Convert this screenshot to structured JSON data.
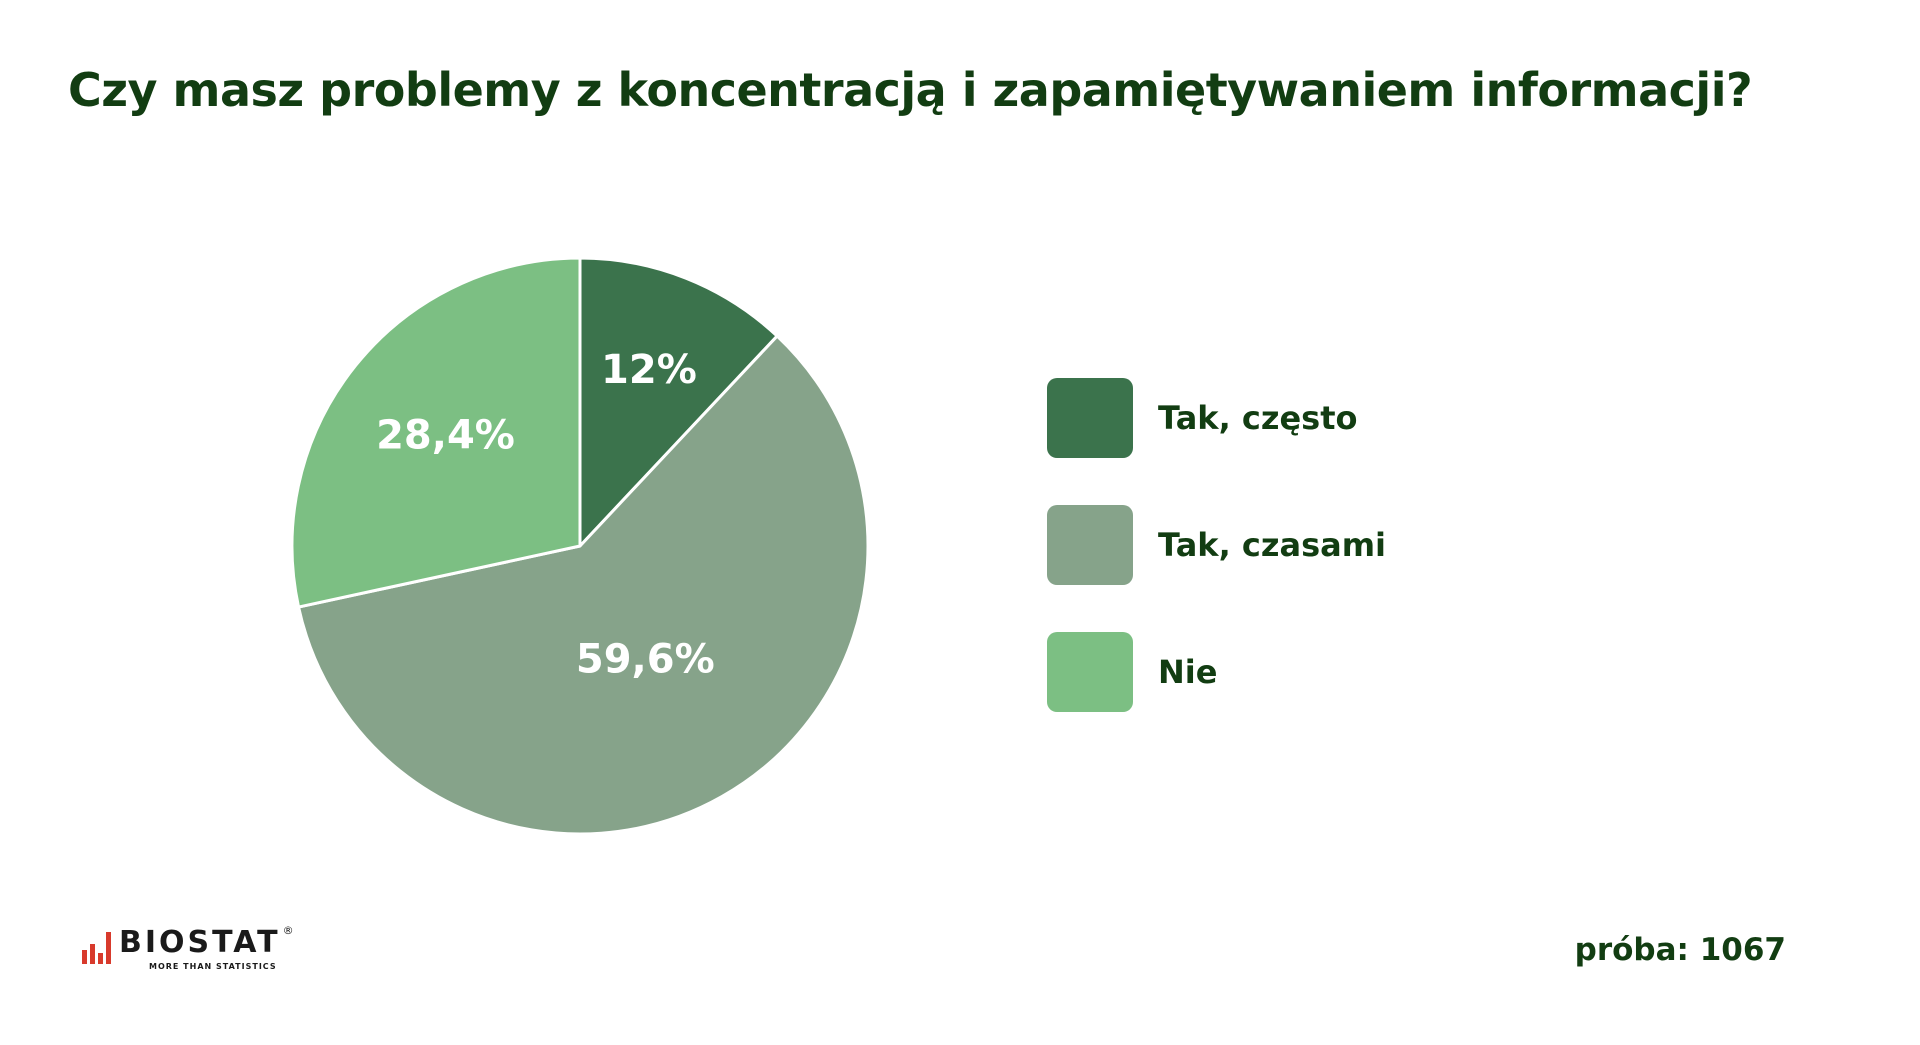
{
  "title": "Czy masz problemy z koncentracją i zapamiętywaniem informacji?",
  "chart_data": {
    "type": "pie",
    "title": "Czy masz problemy z koncentracją i zapamiętywaniem informacji?",
    "categories": [
      "Tak, często",
      "Tak, czasami",
      "Nie"
    ],
    "values": [
      12,
      59.6,
      28.4
    ],
    "value_labels": [
      "12%",
      "59,6%",
      "28,4%"
    ],
    "colors": [
      "#3b734c",
      "#86a38a",
      "#7cbf83"
    ],
    "start_angle_deg": 0,
    "direction": "clockwise",
    "legend_position": "right"
  },
  "legend": [
    {
      "label": "Tak, często",
      "color": "#3b734c"
    },
    {
      "label": "Tak, czasami",
      "color": "#86a38a"
    },
    {
      "label": "Nie",
      "color": "#7cbf83"
    }
  ],
  "logo": {
    "name": "BIOSTAT",
    "tagline": "MORE THAN STATISTICS",
    "registered": "®",
    "color_accent": "#d83a2c"
  },
  "sample_text": "próba: 1067"
}
